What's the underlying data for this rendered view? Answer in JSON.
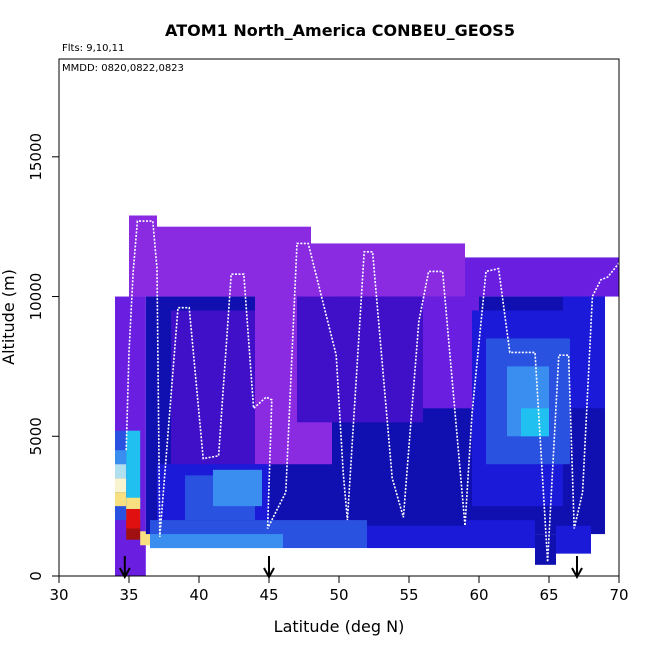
{
  "chart_data": {
    "type": "heatmap",
    "title": "ATOM1 North_America CONBEU_GEOS5",
    "annotations": {
      "flights": "Flts: 9,10,11",
      "dates": "MMDD: 0820,0822,0823"
    },
    "xlabel": "Latitude (deg N)",
    "ylabel": "Altitude (m)",
    "xlim": [
      30,
      70
    ],
    "ylim": [
      0,
      18500
    ],
    "x_ticks": [
      30,
      35,
      40,
      45,
      50,
      55,
      60,
      65,
      70
    ],
    "x_tick_labels": [
      "30",
      "35",
      "40",
      "45",
      "50",
      "55",
      "60",
      "65",
      "70"
    ],
    "y_ticks": [
      0,
      5000,
      10000,
      15000
    ],
    "y_tick_labels": [
      "0",
      "5000",
      "10000",
      "15000"
    ],
    "arrow_markers_latitude": [
      34.7,
      45.0,
      67.0
    ],
    "colors": {
      "violet": "#8a2be2",
      "purple": "#6a1ee0",
      "indigo": "#3f10c8",
      "navy": "#1010b0",
      "blue": "#1a1ad8",
      "royal": "#2a52e0",
      "sky": "#3a8ef0",
      "cyan": "#20c0f0",
      "pale": "#b0e0f0",
      "cream": "#f8f4d0",
      "yellow": "#f8e080",
      "red": "#e01010",
      "darkred": "#a01010",
      "track": "#ffffff"
    },
    "cells": [
      {
        "lat0": 34.0,
        "lat1": 36.2,
        "alt0": 0,
        "alt1": 10000,
        "color": "purple"
      },
      {
        "lat0": 34.0,
        "lat1": 34.8,
        "alt0": 2000,
        "alt1": 5200,
        "color": "royal"
      },
      {
        "lat0": 34.0,
        "lat1": 34.8,
        "alt0": 4000,
        "alt1": 4500,
        "color": "sky"
      },
      {
        "lat0": 34.0,
        "lat1": 34.8,
        "alt0": 3500,
        "alt1": 4000,
        "color": "pale"
      },
      {
        "lat0": 34.0,
        "lat1": 34.8,
        "alt0": 3000,
        "alt1": 3500,
        "color": "cream"
      },
      {
        "lat0": 34.0,
        "lat1": 34.8,
        "alt0": 2500,
        "alt1": 3000,
        "color": "yellow"
      },
      {
        "lat0": 34.8,
        "lat1": 35.8,
        "alt0": 2000,
        "alt1": 5200,
        "color": "cyan"
      },
      {
        "lat0": 34.8,
        "lat1": 35.8,
        "alt0": 1300,
        "alt1": 2000,
        "color": "darkred"
      },
      {
        "lat0": 34.8,
        "lat1": 35.8,
        "alt0": 1700,
        "alt1": 2400,
        "color": "red"
      },
      {
        "lat0": 34.8,
        "lat1": 35.8,
        "alt0": 2400,
        "alt1": 2800,
        "color": "yellow"
      },
      {
        "lat0": 35.8,
        "lat1": 36.8,
        "alt0": 1100,
        "alt1": 1600,
        "color": "yellow"
      },
      {
        "lat0": 35.0,
        "lat1": 37.0,
        "alt0": 10000,
        "alt1": 12900,
        "color": "violet"
      },
      {
        "lat0": 36.8,
        "lat1": 48.0,
        "alt0": 10000,
        "alt1": 12500,
        "color": "violet"
      },
      {
        "lat0": 48.0,
        "lat1": 59.0,
        "alt0": 10000,
        "alt1": 11900,
        "color": "violet"
      },
      {
        "lat0": 59.0,
        "lat1": 70.0,
        "alt0": 10000,
        "alt1": 11400,
        "color": "purple"
      },
      {
        "lat0": 36.2,
        "lat1": 69.0,
        "alt0": 1500,
        "alt1": 10000,
        "color": "navy"
      },
      {
        "lat0": 38.0,
        "lat1": 45.0,
        "alt0": 3500,
        "alt1": 9500,
        "color": "indigo"
      },
      {
        "lat0": 44.0,
        "lat1": 49.5,
        "alt0": 4000,
        "alt1": 10500,
        "color": "violet"
      },
      {
        "lat0": 47.0,
        "lat1": 56.0,
        "alt0": 5500,
        "alt1": 10000,
        "color": "indigo"
      },
      {
        "lat0": 56.0,
        "lat1": 60.0,
        "alt0": 6000,
        "alt1": 10000,
        "color": "purple"
      },
      {
        "lat0": 59.5,
        "lat1": 66.0,
        "alt0": 2500,
        "alt1": 9500,
        "color": "blue"
      },
      {
        "lat0": 60.5,
        "lat1": 65.5,
        "alt0": 4000,
        "alt1": 8500,
        "color": "royal"
      },
      {
        "lat0": 62.0,
        "lat1": 65.0,
        "alt0": 5000,
        "alt1": 7500,
        "color": "sky"
      },
      {
        "lat0": 63.0,
        "lat1": 65.0,
        "alt0": 5000,
        "alt1": 6000,
        "color": "cyan"
      },
      {
        "lat0": 66.0,
        "lat1": 69.0,
        "alt0": 6000,
        "alt1": 10000,
        "color": "blue"
      },
      {
        "lat0": 37.0,
        "lat1": 45.0,
        "alt0": 1500,
        "alt1": 4000,
        "color": "blue"
      },
      {
        "lat0": 39.0,
        "lat1": 44.0,
        "alt0": 2000,
        "alt1": 3600,
        "color": "royal"
      },
      {
        "lat0": 41.0,
        "lat1": 44.5,
        "alt0": 2500,
        "alt1": 3800,
        "color": "sky"
      },
      {
        "lat0": 36.5,
        "lat1": 52.0,
        "alt0": 1000,
        "alt1": 2000,
        "color": "royal"
      },
      {
        "lat0": 36.5,
        "lat1": 46.0,
        "alt0": 1000,
        "alt1": 1500,
        "color": "sky"
      },
      {
        "lat0": 52.0,
        "lat1": 59.0,
        "alt0": 1000,
        "alt1": 1800,
        "color": "blue"
      },
      {
        "lat0": 59.0,
        "lat1": 64.0,
        "alt0": 1000,
        "alt1": 2000,
        "color": "blue"
      },
      {
        "lat0": 64.0,
        "lat1": 65.5,
        "alt0": 400,
        "alt1": 1500,
        "color": "navy"
      },
      {
        "lat0": 65.5,
        "lat1": 68.0,
        "alt0": 800,
        "alt1": 1800,
        "color": "blue"
      },
      {
        "lat0": 65.5,
        "lat1": 66.5,
        "alt0": 4000,
        "alt1": 8500,
        "color": "royal"
      }
    ],
    "flight_track": [
      {
        "lat": 34.8,
        "alt": 4500
      },
      {
        "lat": 35.0,
        "alt": 8000
      },
      {
        "lat": 35.3,
        "alt": 10900
      },
      {
        "lat": 35.6,
        "alt": 12700
      },
      {
        "lat": 36.7,
        "alt": 12700
      },
      {
        "lat": 37.0,
        "alt": 11000
      },
      {
        "lat": 37.2,
        "alt": 1400
      },
      {
        "lat": 38.5,
        "alt": 9600
      },
      {
        "lat": 39.3,
        "alt": 9600
      },
      {
        "lat": 40.3,
        "alt": 4200
      },
      {
        "lat": 41.4,
        "alt": 4300
      },
      {
        "lat": 42.3,
        "alt": 10800
      },
      {
        "lat": 43.2,
        "alt": 10800
      },
      {
        "lat": 43.9,
        "alt": 6000
      },
      {
        "lat": 44.8,
        "alt": 6400
      },
      {
        "lat": 45.2,
        "alt": 6300
      },
      {
        "lat": 44.9,
        "alt": 1700
      },
      {
        "lat": 46.2,
        "alt": 3000
      },
      {
        "lat": 47.0,
        "alt": 11900
      },
      {
        "lat": 47.8,
        "alt": 11900
      },
      {
        "lat": 49.8,
        "alt": 7900
      },
      {
        "lat": 50.3,
        "alt": 3700
      },
      {
        "lat": 50.6,
        "alt": 2000
      },
      {
        "lat": 51.8,
        "alt": 11600
      },
      {
        "lat": 52.4,
        "alt": 11600
      },
      {
        "lat": 53.8,
        "alt": 3500
      },
      {
        "lat": 54.6,
        "alt": 2100
      },
      {
        "lat": 55.7,
        "alt": 9100
      },
      {
        "lat": 56.4,
        "alt": 10900
      },
      {
        "lat": 57.4,
        "alt": 10900
      },
      {
        "lat": 59.0,
        "alt": 1800
      },
      {
        "lat": 59.5,
        "alt": 5800
      },
      {
        "lat": 60.5,
        "alt": 10900
      },
      {
        "lat": 61.4,
        "alt": 11000
      },
      {
        "lat": 62.2,
        "alt": 8000
      },
      {
        "lat": 64.0,
        "alt": 8000
      },
      {
        "lat": 64.9,
        "alt": 500
      },
      {
        "lat": 65.7,
        "alt": 7900
      },
      {
        "lat": 66.4,
        "alt": 7900
      },
      {
        "lat": 66.8,
        "alt": 1700
      },
      {
        "lat": 67.4,
        "alt": 3000
      },
      {
        "lat": 68.1,
        "alt": 10000
      },
      {
        "lat": 68.7,
        "alt": 10600
      },
      {
        "lat": 69.2,
        "alt": 10700
      },
      {
        "lat": 70.0,
        "alt": 11200
      }
    ]
  }
}
